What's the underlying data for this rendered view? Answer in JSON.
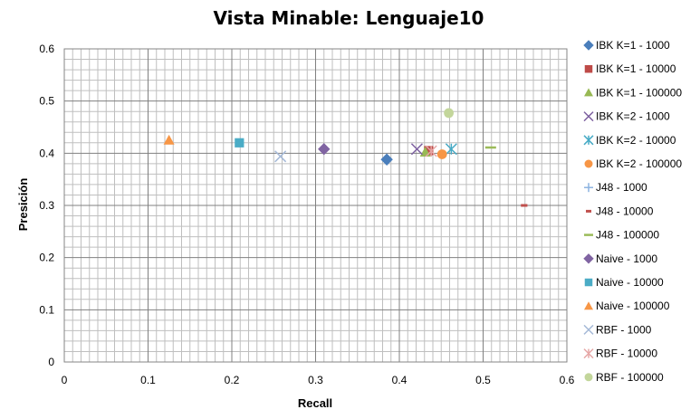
{
  "chart_data": {
    "type": "scatter",
    "title": "Vista Minable: Lenguaje10",
    "xlabel": "Recall",
    "ylabel": "Presición",
    "xlim": [
      0,
      0.6
    ],
    "ylim": [
      0,
      0.6
    ],
    "x_ticks": [
      "0",
      "0.1",
      "0.2",
      "0.3",
      "0.4",
      "0.5",
      "0.6"
    ],
    "y_ticks": [
      "0",
      "0.1",
      "0.2",
      "0.3",
      "0.4",
      "0.5",
      "0.6"
    ],
    "grid": true,
    "legend_position": "right",
    "series": [
      {
        "name": "IBK K=1 - 1000",
        "marker": "diamond",
        "color": "#4a7ebb",
        "points": [
          {
            "x": 0.385,
            "y": 0.388
          }
        ]
      },
      {
        "name": "IBK K=1 - 10000",
        "marker": "square",
        "color": "#be4b48",
        "points": [
          {
            "x": 0.435,
            "y": 0.405
          }
        ]
      },
      {
        "name": "IBK K=1 - 100000",
        "marker": "triangle",
        "color": "#98b954",
        "points": [
          {
            "x": 0.431,
            "y": 0.402
          }
        ]
      },
      {
        "name": "IBK K=2 - 1000",
        "marker": "x",
        "color": "#7d60a0",
        "points": [
          {
            "x": 0.421,
            "y": 0.408
          }
        ]
      },
      {
        "name": "IBK K=2 - 10000",
        "marker": "star",
        "color": "#46aac5",
        "points": [
          {
            "x": 0.462,
            "y": 0.408
          }
        ]
      },
      {
        "name": "IBK K=2 - 100000",
        "marker": "circle",
        "color": "#f79646",
        "points": [
          {
            "x": 0.451,
            "y": 0.398
          }
        ]
      },
      {
        "name": "J48 - 1000",
        "marker": "plus",
        "color": "#8cb3e0",
        "points": []
      },
      {
        "name": "J48 - 10000",
        "marker": "dash",
        "color": "#c0504d",
        "points": [
          {
            "x": 0.549,
            "y": 0.3
          }
        ]
      },
      {
        "name": "J48 - 100000",
        "marker": "line",
        "color": "#9bbb59",
        "points": [
          {
            "x": 0.509,
            "y": 0.411
          }
        ]
      },
      {
        "name": "Naive - 1000",
        "marker": "diamond",
        "color": "#8064a2",
        "points": [
          {
            "x": 0.31,
            "y": 0.408
          }
        ]
      },
      {
        "name": "Naive - 10000",
        "marker": "square",
        "color": "#4bacc6",
        "points": [
          {
            "x": 0.209,
            "y": 0.42
          }
        ]
      },
      {
        "name": "Naive - 100000",
        "marker": "triangle",
        "color": "#f79646",
        "points": [
          {
            "x": 0.125,
            "y": 0.425
          }
        ]
      },
      {
        "name": "RBF - 1000",
        "marker": "x",
        "color": "#a5b9d7",
        "points": [
          {
            "x": 0.258,
            "y": 0.394
          }
        ]
      },
      {
        "name": "RBF - 10000",
        "marker": "star",
        "color": "#e6a7a6",
        "points": [
          {
            "x": 0.438,
            "y": 0.404
          }
        ]
      },
      {
        "name": "RBF - 100000",
        "marker": "circle",
        "color": "#c3d69b",
        "points": [
          {
            "x": 0.459,
            "y": 0.477
          }
        ]
      }
    ]
  }
}
